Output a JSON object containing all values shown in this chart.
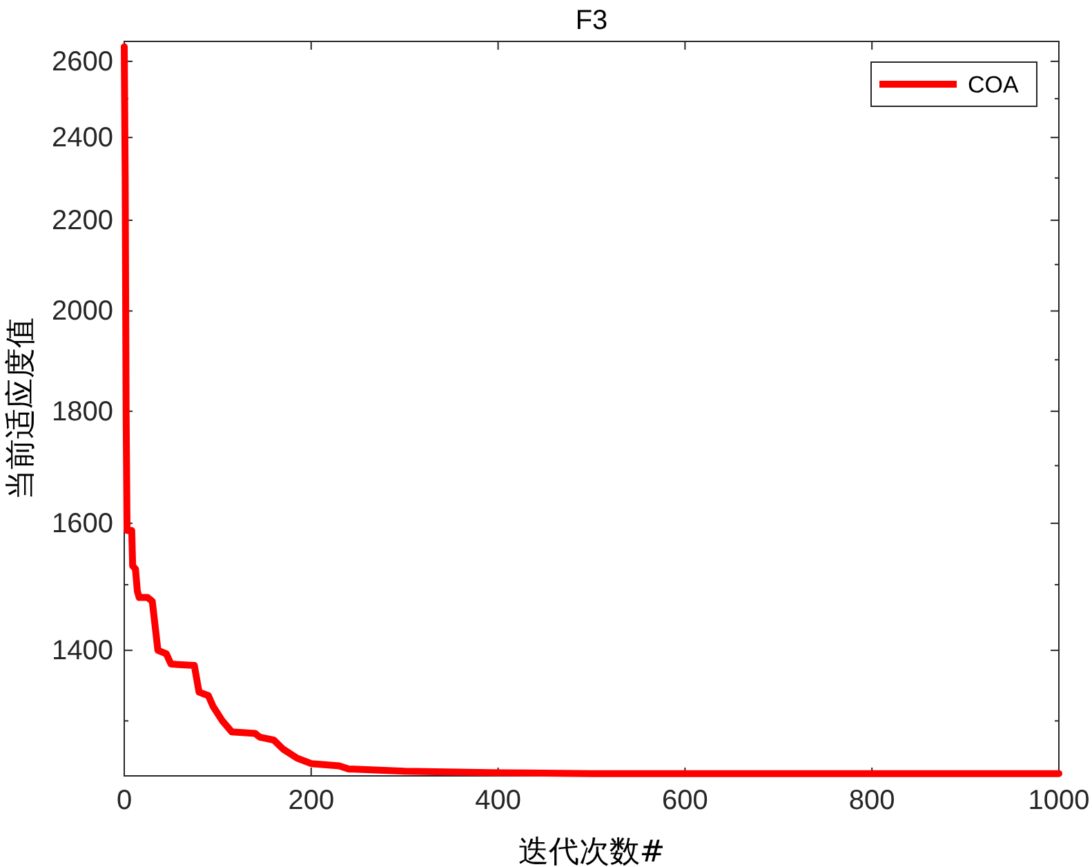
{
  "chart_data": {
    "type": "line",
    "title": "F3",
    "xlabel": "迭代次数#",
    "ylabel": "当前适应度值",
    "log": "y",
    "legend": "top right",
    "xlim": [
      0,
      1000
    ],
    "xticks": [
      0,
      200,
      400,
      600,
      800,
      1000
    ],
    "ylim": [
      1227,
      2655
    ],
    "yticks": [
      {
        "value": 1300,
        "label": null
      },
      1400,
      {
        "value": 1500,
        "label": null
      },
      1600,
      {
        "value": 1700,
        "label": null
      },
      1800,
      {
        "value": 1900,
        "label": null
      },
      2000,
      {
        "value": 2100,
        "label": null
      },
      2200,
      {
        "value": 2300,
        "label": null
      },
      2400,
      {
        "value": 2500,
        "label": null
      },
      2600
    ],
    "series": [
      {
        "name": "COA",
        "color": "#ff0000",
        "x": [
          0,
          1,
          2,
          3,
          8,
          9,
          12,
          14,
          16,
          25,
          30,
          36,
          45,
          50,
          75,
          80,
          90,
          95,
          105,
          115,
          140,
          145,
          160,
          170,
          185,
          200,
          230,
          240,
          300,
          400,
          500,
          1000
        ],
        "values": [
          2640,
          2300,
          1800,
          1588,
          1588,
          1530,
          1525,
          1490,
          1480,
          1480,
          1474,
          1400,
          1395,
          1380,
          1378,
          1340,
          1335,
          1320,
          1300,
          1285,
          1283,
          1278,
          1274,
          1262,
          1250,
          1243,
          1240,
          1236,
          1233,
          1231,
          1230,
          1230
        ]
      }
    ]
  }
}
